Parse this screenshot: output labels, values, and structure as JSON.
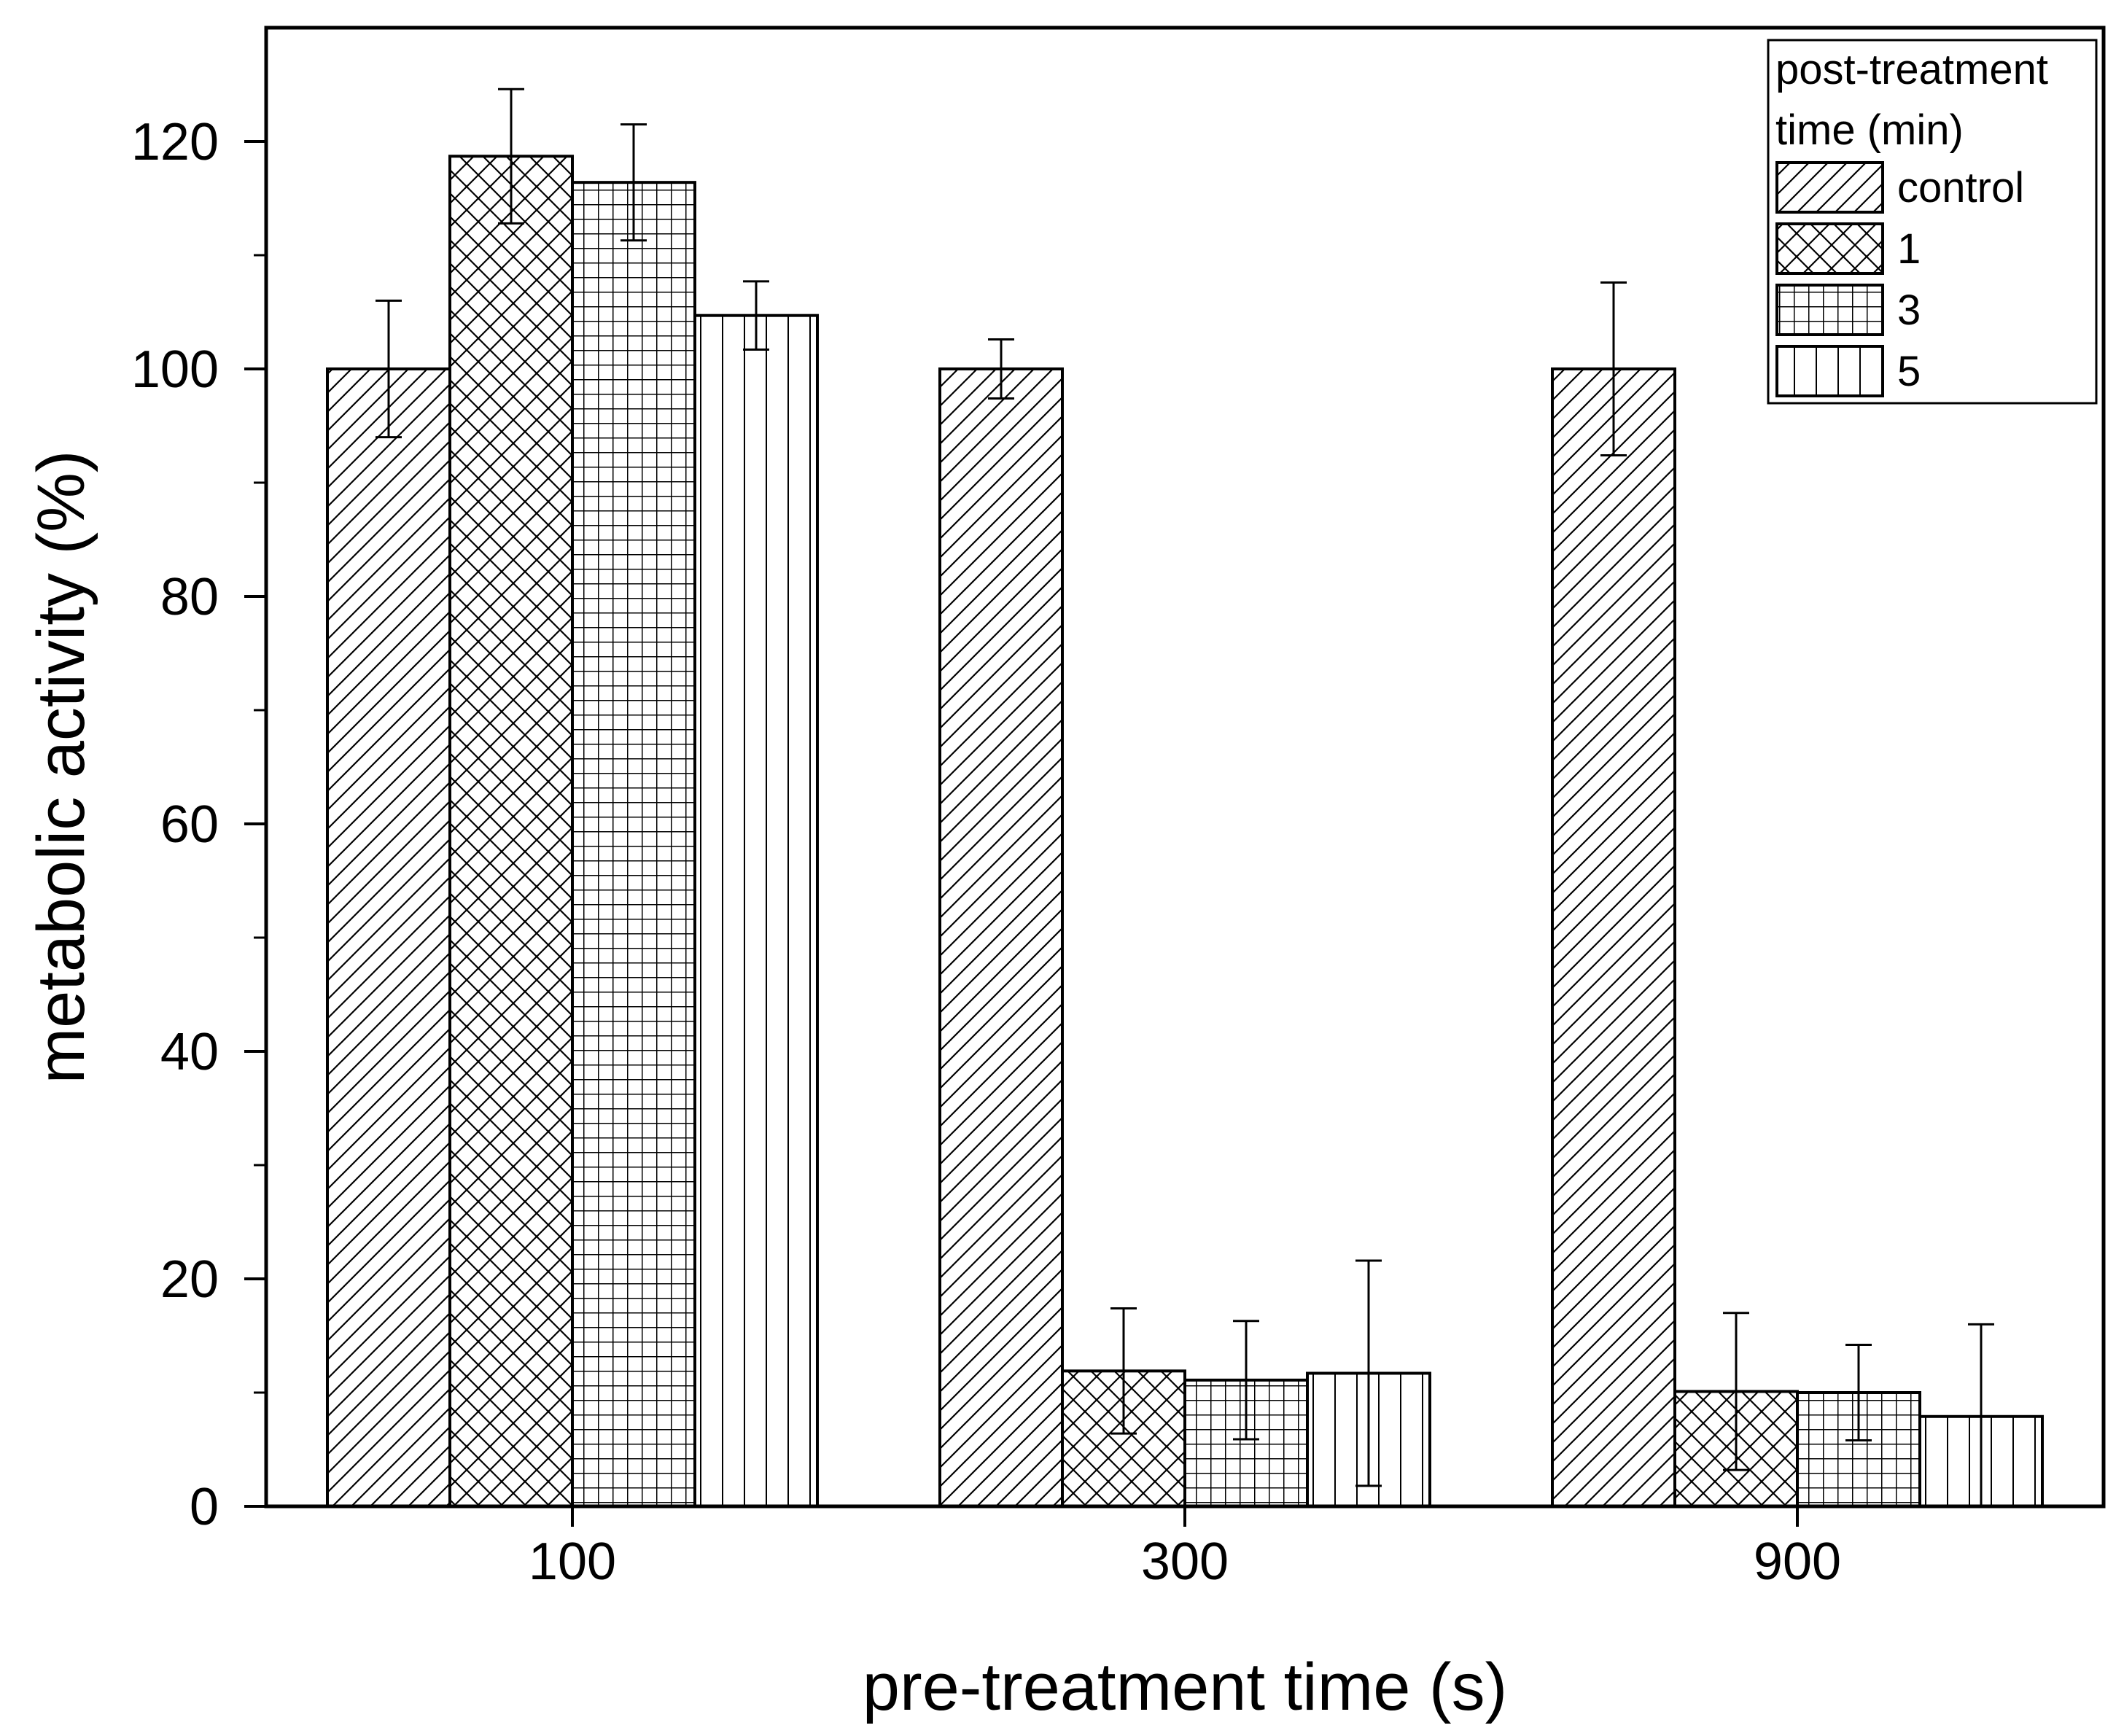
{
  "chart_data": {
    "type": "bar",
    "title": "",
    "xlabel": "pre-treatment time (s)",
    "ylabel": "metabolic activity (%)",
    "ylim": [
      0,
      130
    ],
    "yticks": [
      "0",
      "20",
      "40",
      "60",
      "80",
      "100",
      "120"
    ],
    "categories": [
      "100",
      "300",
      "900"
    ],
    "legend": {
      "title_line1": "post-treatment",
      "title_line2": "time (min)",
      "placement": "top-right"
    },
    "series": [
      {
        "name": "control",
        "pattern": "diagonal",
        "values": [
          100,
          100,
          100
        ],
        "errors": [
          6,
          2.6,
          7.6
        ]
      },
      {
        "name": "1",
        "pattern": "crosshatch",
        "values": [
          118.7,
          11.9,
          10.1
        ],
        "errors": [
          5.9,
          5.5,
          6.9
        ]
      },
      {
        "name": "3",
        "pattern": "grid",
        "values": [
          116.4,
          11.1,
          10.0
        ],
        "errors": [
          5.1,
          5.2,
          4.2
        ]
      },
      {
        "name": "5",
        "pattern": "vertical",
        "values": [
          104.7,
          11.7,
          7.9
        ],
        "errors": [
          3.0,
          9.9,
          8.1
        ]
      }
    ]
  }
}
